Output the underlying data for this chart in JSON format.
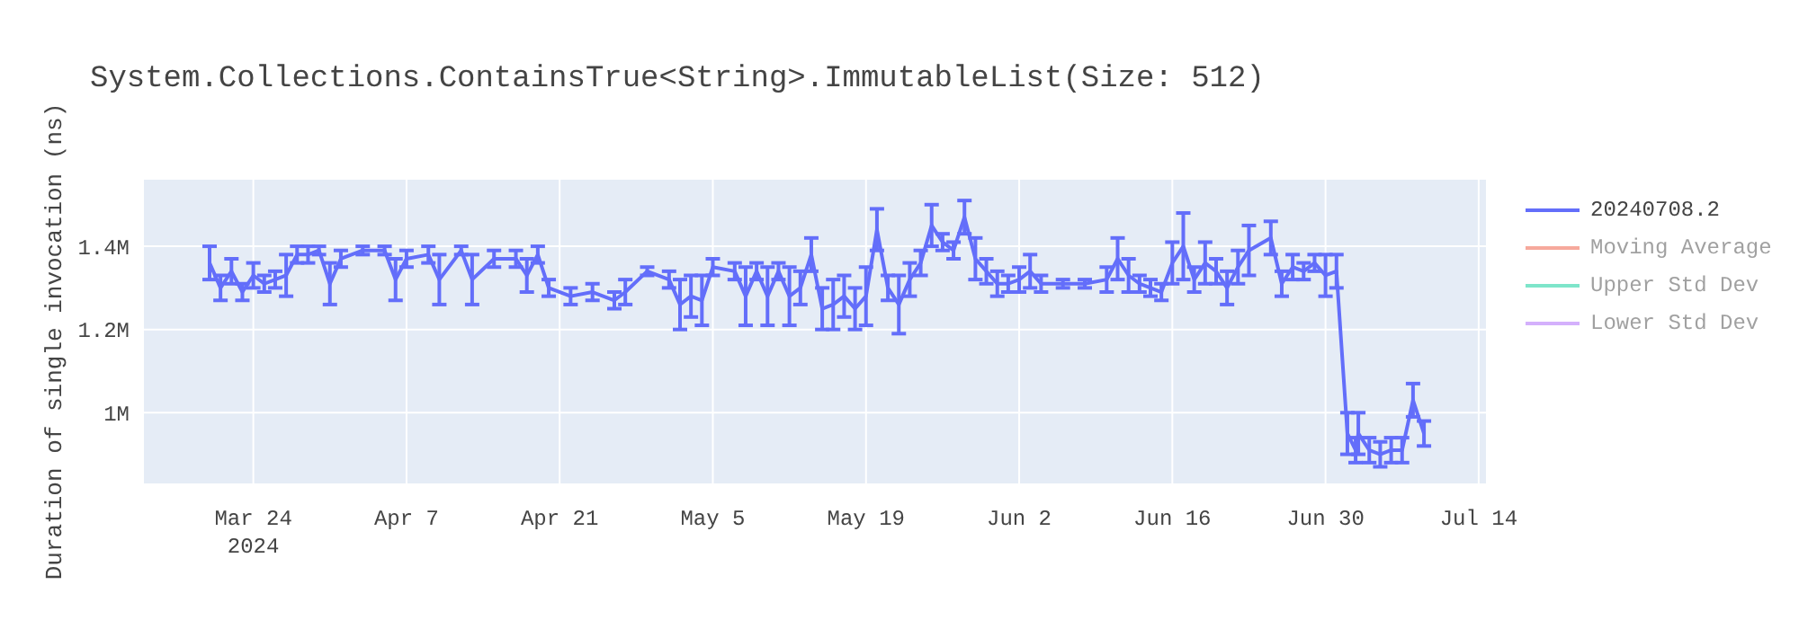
{
  "chart_data": {
    "type": "line",
    "title": "System.Collections.ContainsTrue<String>.ImmutableList(Size: 512)",
    "ylabel": "Duration of single invocation (ns)",
    "xlim": [
      "2024-03-14",
      "2024-07-14T16:00"
    ],
    "xticks": [
      {
        "value": "2024-03-24",
        "label": "Mar 24\n2024"
      },
      {
        "value": "2024-04-07",
        "label": "Apr 7"
      },
      {
        "value": "2024-04-21",
        "label": "Apr 21"
      },
      {
        "value": "2024-05-05",
        "label": "May 5"
      },
      {
        "value": "2024-05-19",
        "label": "May 19"
      },
      {
        "value": "2024-06-02",
        "label": "Jun 2"
      },
      {
        "value": "2024-06-16",
        "label": "Jun 16"
      },
      {
        "value": "2024-06-30",
        "label": "Jun 30"
      },
      {
        "value": "2024-07-14",
        "label": "Jul 14"
      }
    ],
    "ylim": [
      830000,
      1560000
    ],
    "yticks": [
      {
        "value": 1000000,
        "label": "1M"
      },
      {
        "value": 1200000,
        "label": "1.2M"
      },
      {
        "value": 1400000,
        "label": "1.4M"
      }
    ],
    "grid": true,
    "legend": "top right",
    "marker": "none",
    "line_style": "solid",
    "series": [
      {
        "name": "20240708.2",
        "color": "#636efa",
        "x": [
          "2024-03-20",
          "2024-03-21",
          "2024-03-22",
          "2024-03-23",
          "2024-03-24",
          "2024-03-25",
          "2024-03-26",
          "2024-03-27",
          "2024-03-28",
          "2024-03-29",
          "2024-03-30",
          "2024-03-31",
          "2024-04-01",
          "2024-04-03",
          "2024-04-05",
          "2024-04-06",
          "2024-04-07",
          "2024-04-09",
          "2024-04-10",
          "2024-04-12",
          "2024-04-13",
          "2024-04-15",
          "2024-04-17",
          "2024-04-18",
          "2024-04-19",
          "2024-04-20",
          "2024-04-22",
          "2024-04-24",
          "2024-04-26",
          "2024-04-27",
          "2024-04-29",
          "2024-05-01",
          "2024-05-02",
          "2024-05-03",
          "2024-05-04",
          "2024-05-05",
          "2024-05-07",
          "2024-05-08",
          "2024-05-09",
          "2024-05-10",
          "2024-05-11",
          "2024-05-12",
          "2024-05-13",
          "2024-05-14",
          "2024-05-15",
          "2024-05-16",
          "2024-05-17",
          "2024-05-18",
          "2024-05-19",
          "2024-05-20",
          "2024-05-21",
          "2024-05-22",
          "2024-05-23",
          "2024-05-24",
          "2024-05-25",
          "2024-05-26",
          "2024-05-27",
          "2024-05-28",
          "2024-05-29",
          "2024-05-30",
          "2024-05-31",
          "2024-06-01",
          "2024-06-02",
          "2024-06-03",
          "2024-06-04",
          "2024-06-06",
          "2024-06-08",
          "2024-06-10",
          "2024-06-11",
          "2024-06-12",
          "2024-06-13",
          "2024-06-14",
          "2024-06-15",
          "2024-06-16",
          "2024-06-17",
          "2024-06-18",
          "2024-06-19",
          "2024-06-20",
          "2024-06-21",
          "2024-06-22",
          "2024-06-23",
          "2024-06-25",
          "2024-06-26",
          "2024-06-27",
          "2024-06-28",
          "2024-06-29",
          "2024-06-30",
          "2024-07-01",
          "2024-07-02",
          "2024-07-02T18:00",
          "2024-07-03",
          "2024-07-04",
          "2024-07-05",
          "2024-07-06",
          "2024-07-07",
          "2024-07-08",
          "2024-07-09"
        ],
        "values": [
          1360000,
          1300000,
          1340000,
          1290000,
          1330000,
          1310000,
          1320000,
          1330000,
          1380000,
          1380000,
          1390000,
          1310000,
          1370000,
          1390000,
          1390000,
          1320000,
          1370000,
          1380000,
          1320000,
          1390000,
          1320000,
          1370000,
          1370000,
          1330000,
          1380000,
          1300000,
          1280000,
          1290000,
          1270000,
          1290000,
          1340000,
          1320000,
          1260000,
          1280000,
          1270000,
          1350000,
          1340000,
          1280000,
          1340000,
          1280000,
          1340000,
          1280000,
          1300000,
          1380000,
          1250000,
          1260000,
          1280000,
          1250000,
          1280000,
          1440000,
          1300000,
          1260000,
          1320000,
          1360000,
          1450000,
          1410000,
          1390000,
          1470000,
          1370000,
          1340000,
          1310000,
          1310000,
          1320000,
          1340000,
          1310000,
          1310000,
          1310000,
          1320000,
          1370000,
          1330000,
          1310000,
          1300000,
          1290000,
          1360000,
          1400000,
          1320000,
          1360000,
          1340000,
          1300000,
          1350000,
          1390000,
          1420000,
          1310000,
          1350000,
          1340000,
          1360000,
          1330000,
          1340000,
          950000,
          910000,
          950000,
          910000,
          900000,
          910000,
          910000,
          1030000,
          950000
        ],
        "errors": [
          40000,
          30000,
          30000,
          20000,
          30000,
          20000,
          20000,
          50000,
          20000,
          20000,
          10000,
          50000,
          20000,
          10000,
          10000,
          50000,
          20000,
          20000,
          60000,
          10000,
          60000,
          20000,
          20000,
          40000,
          20000,
          20000,
          20000,
          20000,
          20000,
          30000,
          10000,
          20000,
          60000,
          50000,
          60000,
          20000,
          20000,
          70000,
          20000,
          70000,
          20000,
          70000,
          40000,
          40000,
          50000,
          60000,
          50000,
          50000,
          70000,
          50000,
          30000,
          70000,
          40000,
          30000,
          50000,
          20000,
          20000,
          40000,
          50000,
          30000,
          30000,
          20000,
          30000,
          40000,
          20000,
          10000,
          10000,
          30000,
          50000,
          40000,
          20000,
          20000,
          20000,
          50000,
          80000,
          30000,
          50000,
          30000,
          40000,
          40000,
          60000,
          40000,
          30000,
          30000,
          20000,
          20000,
          50000,
          40000,
          50000,
          30000,
          50000,
          30000,
          30000,
          30000,
          30000,
          40000,
          30000
        ]
      },
      {
        "name": "Moving Average",
        "color": "#ef553b"
      },
      {
        "name": "Upper Std Dev",
        "color": "#00cc96"
      },
      {
        "name": "Lower Std Dev",
        "color": "#ab63fa"
      }
    ]
  }
}
